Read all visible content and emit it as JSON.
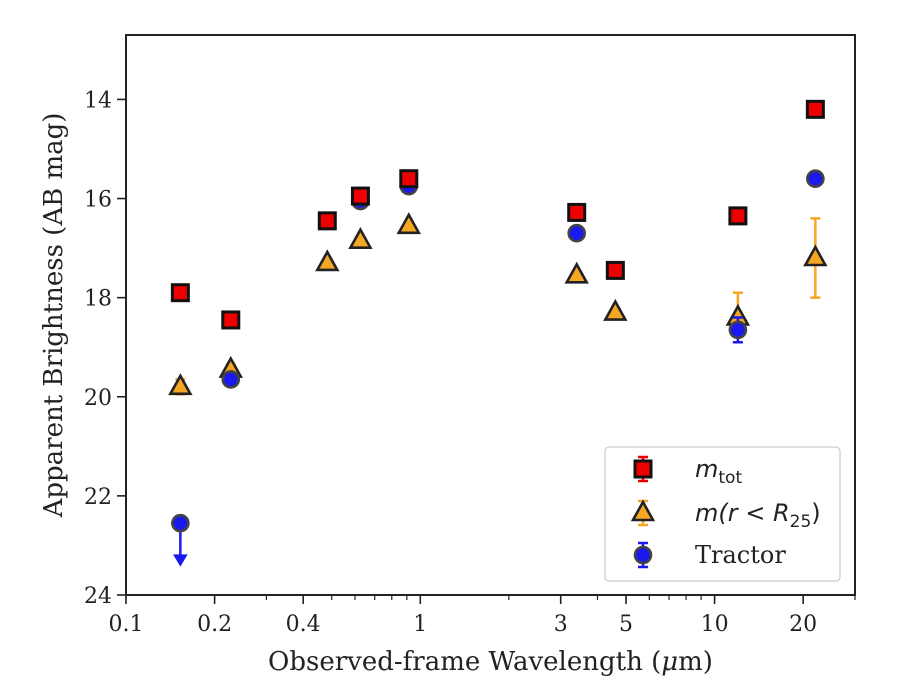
{
  "chart_data": {
    "type": "scatter",
    "xscale": "log",
    "xlabel_text": "Observed-frame Wavelength (",
    "xlabel_mu": "μ",
    "xlabel_unit": "m)",
    "ylabel": "Apparent Brightness (AB mag)",
    "xlim": [
      0.1,
      30
    ],
    "ylim": [
      24,
      12.7
    ],
    "y_inverted": true,
    "xticks": [
      0.1,
      0.2,
      0.4,
      1,
      3,
      5,
      10,
      20
    ],
    "xtick_labels": [
      "0.1",
      "0.2",
      "0.4",
      "1",
      "3",
      "5",
      "10",
      "20"
    ],
    "yticks": [
      14,
      16,
      18,
      20,
      22,
      24
    ],
    "ytick_labels": [
      "14",
      "16",
      "18",
      "20",
      "22",
      "24"
    ],
    "legend_position": "lower-right",
    "series": [
      {
        "key": "mtot",
        "label_main": "m",
        "label_sub": "tot",
        "marker": "square",
        "color": "#ee0000",
        "edge": "#111111",
        "points": [
          {
            "x": 0.153,
            "y": 17.9,
            "err": 0.1
          },
          {
            "x": 0.227,
            "y": 18.45,
            "err": 0.1
          },
          {
            "x": 0.483,
            "y": 16.45,
            "err": 0.08
          },
          {
            "x": 0.626,
            "y": 15.95,
            "err": 0.1
          },
          {
            "x": 0.914,
            "y": 15.6,
            "err": 0.1
          },
          {
            "x": 3.4,
            "y": 16.28,
            "err": 0.05
          },
          {
            "x": 4.6,
            "y": 17.45,
            "err": 0.08
          },
          {
            "x": 12.0,
            "y": 16.35,
            "err": 0.05
          },
          {
            "x": 22.0,
            "y": 14.2,
            "err": 0.05
          }
        ]
      },
      {
        "key": "mr25",
        "label_main": "m(r < R",
        "label_sub": "25",
        "label_end": ")",
        "marker": "triangle",
        "color": "#f5a623",
        "edge": "#222222",
        "points": [
          {
            "x": 0.153,
            "y": 19.8,
            "err": 0.15
          },
          {
            "x": 0.227,
            "y": 19.45,
            "err": 0.1
          },
          {
            "x": 0.483,
            "y": 17.3,
            "err": 0.05
          },
          {
            "x": 0.626,
            "y": 16.85,
            "err": 0.05
          },
          {
            "x": 0.914,
            "y": 16.55,
            "err": 0.05
          },
          {
            "x": 3.4,
            "y": 17.55,
            "err": 0.05
          },
          {
            "x": 4.6,
            "y": 18.3,
            "err": 0.05
          },
          {
            "x": 12.0,
            "y": 18.4,
            "err": 0.5
          },
          {
            "x": 22.0,
            "y": 17.2,
            "err": 0.8
          }
        ]
      },
      {
        "key": "tractor",
        "label_main": "Tractor",
        "marker": "circle",
        "color": "#1a1aee",
        "edge": "#444444",
        "points": [
          {
            "x": 0.153,
            "y": 22.55,
            "upper_limit": true
          },
          {
            "x": 0.227,
            "y": 19.65,
            "err": 0.05
          },
          {
            "x": 0.483,
            "y": 16.45,
            "err": 0.05
          },
          {
            "x": 0.626,
            "y": 16.05,
            "err": 0.05
          },
          {
            "x": 0.914,
            "y": 15.75,
            "err": 0.05
          },
          {
            "x": 3.4,
            "y": 16.7,
            "err": 0.05
          },
          {
            "x": 4.6,
            "y": 17.45,
            "err": 0.05
          },
          {
            "x": 12.0,
            "y": 18.65,
            "err": 0.25
          },
          {
            "x": 22.0,
            "y": 15.6,
            "err": 0.05
          }
        ]
      }
    ]
  }
}
